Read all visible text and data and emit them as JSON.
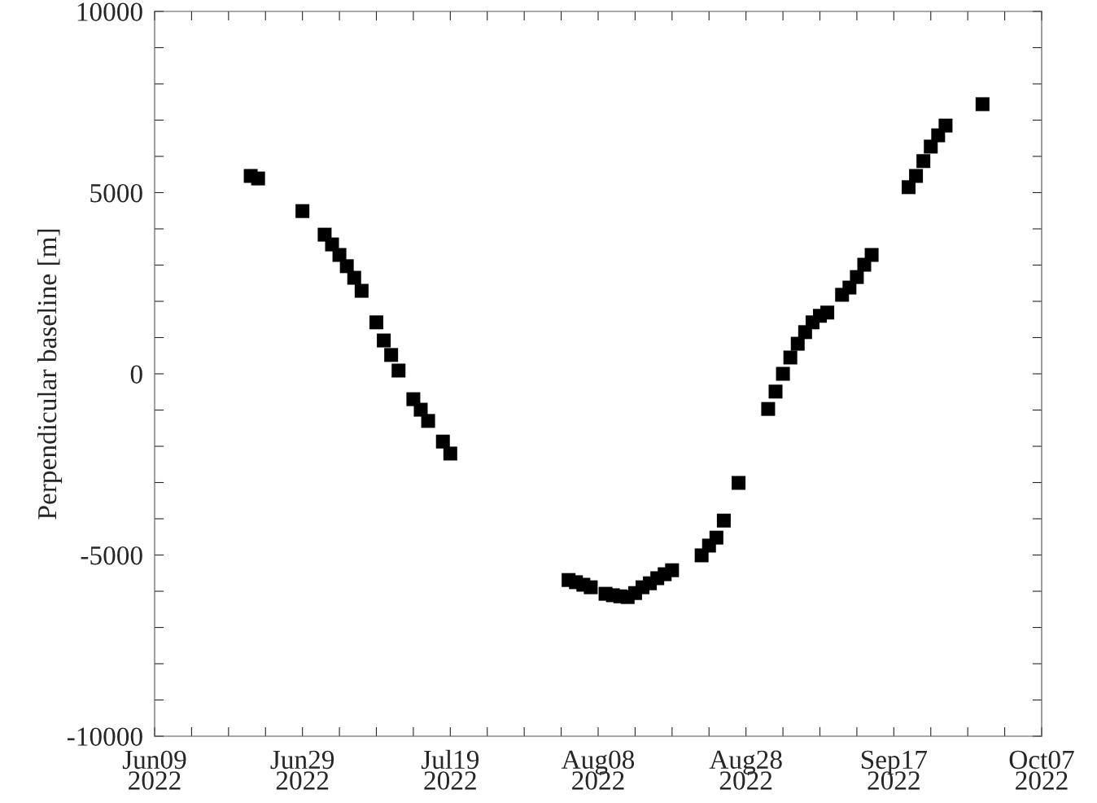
{
  "chart_data": {
    "type": "scatter",
    "ylabel": "Perpendicular baseline [m]",
    "marker": "square",
    "grid": false,
    "legend": false,
    "x": [
      "2022-06-22",
      "2022-06-23",
      "2022-06-29",
      "2022-07-02",
      "2022-07-03",
      "2022-07-04",
      "2022-07-05",
      "2022-07-06",
      "2022-07-07",
      "2022-07-09",
      "2022-07-10",
      "2022-07-11",
      "2022-07-12",
      "2022-07-14",
      "2022-07-15",
      "2022-07-16",
      "2022-07-18",
      "2022-07-19",
      "2022-08-04",
      "2022-08-05",
      "2022-08-06",
      "2022-08-07",
      "2022-08-09",
      "2022-08-10",
      "2022-08-11",
      "2022-08-12",
      "2022-08-13",
      "2022-08-14",
      "2022-08-15",
      "2022-08-16",
      "2022-08-17",
      "2022-08-18",
      "2022-08-22",
      "2022-08-23",
      "2022-08-24",
      "2022-08-25",
      "2022-08-27",
      "2022-08-31",
      "2022-09-01",
      "2022-09-02",
      "2022-09-03",
      "2022-09-04",
      "2022-09-05",
      "2022-09-06",
      "2022-09-07",
      "2022-09-08",
      "2022-09-10",
      "2022-09-11",
      "2022-09-12",
      "2022-09-13",
      "2022-09-14",
      "2022-09-19",
      "2022-09-20",
      "2022-09-21",
      "2022-09-22",
      "2022-09-23",
      "2022-09-24",
      "2022-09-29"
    ],
    "series": [
      {
        "color": "#000000",
        "values": [
          5460,
          5390,
          4490,
          3840,
          3570,
          3280,
          2970,
          2650,
          2290,
          1420,
          920,
          520,
          90,
          -700,
          -990,
          -1300,
          -1870,
          -2200,
          -5690,
          -5750,
          -5820,
          -5890,
          -6070,
          -6110,
          -6140,
          -6160,
          -6050,
          -5890,
          -5780,
          -5640,
          -5530,
          -5420,
          -5010,
          -4740,
          -4520,
          -4050,
          -3010,
          -970,
          -490,
          0,
          450,
          830,
          1150,
          1420,
          1600,
          1690,
          2180,
          2380,
          2670,
          3010,
          3280,
          5150,
          5460,
          5870,
          6270,
          6580,
          6850,
          7440
        ]
      }
    ],
    "xlim": [
      "2022-06-09",
      "2022-10-07"
    ],
    "xticks": [
      {
        "value": "2022-06-09",
        "label": "Jun09\n2022"
      },
      {
        "value": "2022-06-14",
        "label": null
      },
      {
        "value": "2022-06-19",
        "label": null
      },
      {
        "value": "2022-06-24",
        "label": null
      },
      {
        "value": "2022-06-29",
        "label": "Jun29\n2022"
      },
      {
        "value": "2022-07-04",
        "label": null
      },
      {
        "value": "2022-07-09",
        "label": null
      },
      {
        "value": "2022-07-14",
        "label": null
      },
      {
        "value": "2022-07-19",
        "label": "Jul19\n2022"
      },
      {
        "value": "2022-07-24",
        "label": null
      },
      {
        "value": "2022-07-29",
        "label": null
      },
      {
        "value": "2022-08-03",
        "label": null
      },
      {
        "value": "2022-08-08",
        "label": "Aug08\n2022"
      },
      {
        "value": "2022-08-13",
        "label": null
      },
      {
        "value": "2022-08-18",
        "label": null
      },
      {
        "value": "2022-08-23",
        "label": null
      },
      {
        "value": "2022-08-28",
        "label": "Aug28\n2022"
      },
      {
        "value": "2022-09-02",
        "label": null
      },
      {
        "value": "2022-09-07",
        "label": null
      },
      {
        "value": "2022-09-12",
        "label": null
      },
      {
        "value": "2022-09-17",
        "label": "Sep17\n2022"
      },
      {
        "value": "2022-09-22",
        "label": null
      },
      {
        "value": "2022-09-27",
        "label": null
      },
      {
        "value": "2022-10-02",
        "label": null
      },
      {
        "value": "2022-10-07",
        "label": "Oct07\n2022"
      }
    ],
    "ylim": [
      -10000,
      10000
    ],
    "yticks": [
      -10000,
      {
        "value": -9000,
        "label": null
      },
      {
        "value": -8000,
        "label": null
      },
      {
        "value": -7000,
        "label": null
      },
      {
        "value": -6000,
        "label": null
      },
      -5000,
      {
        "value": -4000,
        "label": null
      },
      {
        "value": -3000,
        "label": null
      },
      {
        "value": -2000,
        "label": null
      },
      {
        "value": -1000,
        "label": null
      },
      0,
      {
        "value": 1000,
        "label": null
      },
      {
        "value": 2000,
        "label": null
      },
      {
        "value": 3000,
        "label": null
      },
      {
        "value": 4000,
        "label": null
      },
      5000,
      {
        "value": 6000,
        "label": null
      },
      {
        "value": 7000,
        "label": null
      },
      {
        "value": 8000,
        "label": null
      },
      {
        "value": 9000,
        "label": null
      },
      10000
    ]
  }
}
